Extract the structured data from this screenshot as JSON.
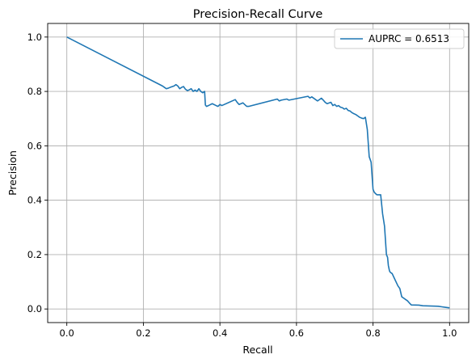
{
  "chart_data": {
    "type": "line",
    "title": "Precision-Recall Curve",
    "xlabel": "Recall",
    "ylabel": "Precision",
    "xlim": [
      -0.05,
      1.05
    ],
    "ylim": [
      -0.05,
      1.05
    ],
    "xticks": [
      0.0,
      0.2,
      0.4,
      0.6,
      0.8,
      1.0
    ],
    "xtick_labels": [
      "0.0",
      "0.2",
      "0.4",
      "0.6",
      "0.8",
      "1.0"
    ],
    "yticks": [
      0.0,
      0.2,
      0.4,
      0.6,
      0.8,
      1.0
    ],
    "ytick_labels": [
      "0.0",
      "0.2",
      "0.4",
      "0.6",
      "0.8",
      "1.0"
    ],
    "grid": true,
    "legend_position": "top-right",
    "series": [
      {
        "name": "AUPRC = 0.6513",
        "color": "#1f77b4",
        "x": [
          0.0,
          0.25,
          0.255,
          0.26,
          0.265,
          0.27,
          0.28,
          0.285,
          0.29,
          0.295,
          0.3,
          0.305,
          0.31,
          0.315,
          0.32,
          0.325,
          0.33,
          0.335,
          0.34,
          0.345,
          0.35,
          0.355,
          0.36,
          0.362,
          0.365,
          0.37,
          0.38,
          0.39,
          0.395,
          0.4,
          0.405,
          0.44,
          0.445,
          0.45,
          0.46,
          0.47,
          0.475,
          0.55,
          0.555,
          0.56,
          0.575,
          0.58,
          0.63,
          0.635,
          0.64,
          0.65,
          0.655,
          0.665,
          0.67,
          0.675,
          0.68,
          0.69,
          0.695,
          0.7,
          0.705,
          0.71,
          0.715,
          0.72,
          0.725,
          0.73,
          0.735,
          0.74,
          0.745,
          0.75,
          0.755,
          0.76,
          0.765,
          0.77,
          0.775,
          0.78,
          0.785,
          0.79,
          0.795,
          0.8,
          0.803,
          0.806,
          0.81,
          0.815,
          0.82,
          0.825,
          0.83,
          0.835,
          0.838,
          0.84,
          0.843,
          0.845,
          0.85,
          0.855,
          0.86,
          0.865,
          0.87,
          0.875,
          0.88,
          0.885,
          0.89,
          0.895,
          0.9,
          0.92,
          0.93,
          0.97,
          0.98,
          0.99,
          1.0
        ],
        "y": [
          1.0,
          0.82,
          0.815,
          0.81,
          0.812,
          0.815,
          0.82,
          0.825,
          0.82,
          0.81,
          0.815,
          0.818,
          0.808,
          0.803,
          0.806,
          0.81,
          0.8,
          0.805,
          0.8,
          0.81,
          0.8,
          0.795,
          0.8,
          0.75,
          0.745,
          0.748,
          0.755,
          0.748,
          0.745,
          0.752,
          0.748,
          0.77,
          0.76,
          0.752,
          0.758,
          0.745,
          0.745,
          0.772,
          0.765,
          0.768,
          0.772,
          0.768,
          0.782,
          0.776,
          0.78,
          0.77,
          0.765,
          0.775,
          0.768,
          0.76,
          0.755,
          0.76,
          0.748,
          0.752,
          0.745,
          0.748,
          0.742,
          0.74,
          0.735,
          0.738,
          0.73,
          0.728,
          0.722,
          0.718,
          0.715,
          0.71,
          0.705,
          0.702,
          0.7,
          0.705,
          0.66,
          0.56,
          0.54,
          0.44,
          0.43,
          0.425,
          0.42,
          0.42,
          0.42,
          0.35,
          0.305,
          0.2,
          0.19,
          0.16,
          0.14,
          0.135,
          0.13,
          0.115,
          0.1,
          0.085,
          0.075,
          0.045,
          0.04,
          0.035,
          0.03,
          0.022,
          0.015,
          0.014,
          0.012,
          0.01,
          0.008,
          0.006,
          0.004
        ]
      }
    ]
  }
}
